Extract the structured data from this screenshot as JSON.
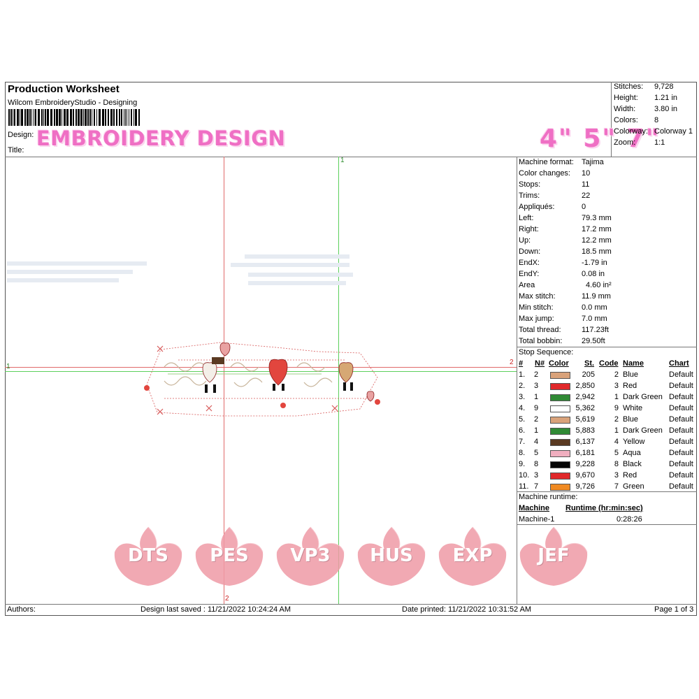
{
  "header": {
    "title": "Production Worksheet",
    "software": "Wilcom EmbroideryStudio - Designing",
    "design_label": "Design:",
    "title_label": "Title:",
    "overlay_text": "EMBROIDERY DESIGN",
    "sizes_text": "4\" 5\" 7\""
  },
  "summary": [
    {
      "k": "Stitches:",
      "v": "9,728"
    },
    {
      "k": "Height:",
      "v": "1.21 in"
    },
    {
      "k": "Width:",
      "v": "3.80 in"
    },
    {
      "k": "Colors:",
      "v": "8"
    },
    {
      "k": "Colorway:",
      "v": "Colorway 1"
    },
    {
      "k": "Zoom:",
      "v": "1:1"
    }
  ],
  "stats": [
    {
      "k": "Machine format:",
      "v": "Tajima"
    },
    {
      "k": "Color changes:",
      "v": "10"
    },
    {
      "k": "Stops:",
      "v": "11"
    },
    {
      "k": "Trims:",
      "v": "22"
    },
    {
      "k": "Appliqués:",
      "v": "0"
    },
    {
      "k": "Left:",
      "v": "79.3 mm"
    },
    {
      "k": "Right:",
      "v": "17.2 mm"
    },
    {
      "k": "Up:",
      "v": "12.2 mm"
    },
    {
      "k": "Down:",
      "v": "18.5 mm"
    },
    {
      "k": "EndX:",
      "v": "-1.79 in"
    },
    {
      "k": "EndY:",
      "v": "0.08 in"
    },
    {
      "k": "Area",
      "v": "4.60 in²"
    },
    {
      "k": "Max stitch:",
      "v": "11.9 mm"
    },
    {
      "k": "Min stitch:",
      "v": "0.0 mm"
    },
    {
      "k": "Max jump:",
      "v": "7.0 mm"
    },
    {
      "k": "Total thread:",
      "v": "117.23ft"
    },
    {
      "k": "Total bobbin:",
      "v": "29.50ft"
    }
  ],
  "stop_sequence": {
    "label": "Stop Sequence:",
    "headers": {
      "num": "#",
      "n": "N#",
      "color": "Color",
      "st": "St.",
      "code": "Code",
      "name": "Name",
      "chart": "Chart"
    },
    "rows": [
      {
        "num": "1.",
        "n": "2",
        "color": "#d9a27a",
        "st": "205",
        "code": "2",
        "name": "Blue",
        "chart": "Default"
      },
      {
        "num": "2.",
        "n": "3",
        "color": "#e0282a",
        "st": "2,850",
        "code": "3",
        "name": "Red",
        "chart": "Default"
      },
      {
        "num": "3.",
        "n": "1",
        "color": "#2f8a35",
        "st": "2,942",
        "code": "1",
        "name": "Dark Green",
        "chart": "Default"
      },
      {
        "num": "4.",
        "n": "9",
        "color": "#ffffff",
        "st": "5,362",
        "code": "9",
        "name": "White",
        "chart": "Default"
      },
      {
        "num": "5.",
        "n": "2",
        "color": "#d9a27a",
        "st": "5,619",
        "code": "2",
        "name": "Blue",
        "chart": "Default"
      },
      {
        "num": "6.",
        "n": "1",
        "color": "#2f8a35",
        "st": "5,883",
        "code": "1",
        "name": "Dark Green",
        "chart": "Default"
      },
      {
        "num": "7.",
        "n": "4",
        "color": "#5a3a22",
        "st": "6,137",
        "code": "4",
        "name": "Yellow",
        "chart": "Default"
      },
      {
        "num": "8.",
        "n": "5",
        "color": "#f0aebf",
        "st": "6,181",
        "code": "5",
        "name": "Aqua",
        "chart": "Default"
      },
      {
        "num": "9.",
        "n": "8",
        "color": "#050505",
        "st": "9,228",
        "code": "8",
        "name": "Black",
        "chart": "Default"
      },
      {
        "num": "10.",
        "n": "3",
        "color": "#e0282a",
        "st": "9,670",
        "code": "3",
        "name": "Red",
        "chart": "Default"
      },
      {
        "num": "11.",
        "n": "7",
        "color": "#f08a22",
        "st": "9,726",
        "code": "7",
        "name": "Green",
        "chart": "Default"
      }
    ]
  },
  "runtime": {
    "label": "Machine runtime:",
    "machine_header": "Machine",
    "runtime_header": "Runtime (hr:min:sec)",
    "machine": "Machine-1",
    "time": "0:28:26"
  },
  "formats": [
    "DTS",
    "PES",
    "VP3",
    "HUS",
    "EXP",
    "JEF"
  ],
  "guides": {
    "v1": "1",
    "h1": "1",
    "h2": "2",
    "v2": "2"
  },
  "footer": {
    "authors": "Authors:",
    "saved": "Design last saved : 11/21/2022 10:24:24 AM",
    "printed": "Date printed: 11/21/2022 10:31:52 AM",
    "page": "Page 1 of 3"
  }
}
